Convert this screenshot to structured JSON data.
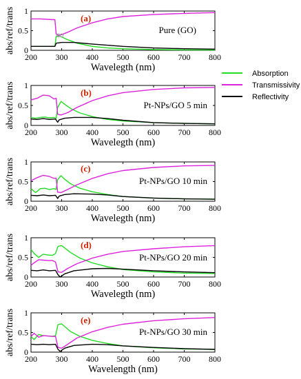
{
  "colors": {
    "absorption": "#22dd22",
    "transmissivity": "#dd22dd",
    "reflectivity": "#000000",
    "panel_tag": "#cc2200",
    "marker": "#999999"
  },
  "legend": {
    "absorption": "Absorption",
    "transmissivity": "Transmissivity",
    "reflectivity": "Reflectivity"
  },
  "chart_data": [
    {
      "type": "line",
      "tag": "(a)",
      "label": "Pure (GO)",
      "xlabel": "Wavelegth (nm)",
      "ylabel": "abs/ref/trans",
      "xlim": [
        200,
        800
      ],
      "ylim": [
        0,
        1
      ],
      "xticks": [
        "200",
        "300",
        "400",
        "500",
        "600",
        "700",
        "800"
      ],
      "yticks": [
        "0",
        "0.5",
        "1"
      ],
      "series": [
        {
          "name": "Absorption",
          "x": [
            200,
            270,
            278,
            282,
            290,
            300,
            320,
            350,
            400,
            450,
            500,
            600,
            700,
            800
          ],
          "y": [
            0.1,
            0.1,
            0.1,
            0.35,
            0.37,
            0.34,
            0.27,
            0.18,
            0.1,
            0.06,
            0.04,
            0.02,
            0.01,
            0.01
          ]
        },
        {
          "name": "Transmissivity",
          "x": [
            200,
            230,
            270,
            278,
            282,
            290,
            300,
            320,
            350,
            400,
            450,
            500,
            600,
            700,
            800
          ],
          "y": [
            0.8,
            0.8,
            0.78,
            0.78,
            0.42,
            0.38,
            0.4,
            0.46,
            0.57,
            0.7,
            0.8,
            0.86,
            0.91,
            0.94,
            0.96
          ]
        },
        {
          "name": "Reflectivity",
          "x": [
            200,
            270,
            278,
            282,
            300,
            340,
            400,
            500,
            600,
            700,
            800
          ],
          "y": [
            0.1,
            0.1,
            0.1,
            0.18,
            0.2,
            0.2,
            0.16,
            0.1,
            0.06,
            0.04,
            0.03
          ]
        }
      ]
    },
    {
      "type": "line",
      "tag": "(b)",
      "label": "Pt-NPs/GO 5 min",
      "xlabel": "Wavelegth (nm)",
      "ylabel": "abs/ref/trans",
      "xlim": [
        200,
        800
      ],
      "ylim": [
        0,
        1
      ],
      "xticks": [
        "200",
        "300",
        "400",
        "500",
        "600",
        "700",
        "800"
      ],
      "yticks": [
        "0",
        "0.5",
        "1"
      ],
      "series": [
        {
          "name": "Absorption",
          "x": [
            200,
            215,
            230,
            245,
            260,
            275,
            282,
            287,
            298,
            310,
            330,
            360,
            400,
            450,
            500,
            600,
            700,
            800
          ],
          "y": [
            0.2,
            0.18,
            0.2,
            0.21,
            0.19,
            0.2,
            0.18,
            0.45,
            0.6,
            0.53,
            0.42,
            0.31,
            0.22,
            0.15,
            0.11,
            0.07,
            0.05,
            0.04
          ]
        },
        {
          "name": "Transmissivity",
          "x": [
            200,
            220,
            240,
            260,
            275,
            282,
            287,
            298,
            320,
            350,
            400,
            450,
            500,
            600,
            700,
            800
          ],
          "y": [
            0.64,
            0.68,
            0.76,
            0.74,
            0.66,
            0.68,
            0.28,
            0.26,
            0.32,
            0.45,
            0.62,
            0.74,
            0.82,
            0.9,
            0.94,
            0.95
          ]
        },
        {
          "name": "Reflectivity",
          "x": [
            200,
            220,
            240,
            260,
            280,
            287,
            292,
            310,
            340,
            400,
            450,
            500,
            600,
            700,
            800
          ],
          "y": [
            0.16,
            0.15,
            0.17,
            0.15,
            0.16,
            0.08,
            0.14,
            0.18,
            0.2,
            0.2,
            0.17,
            0.13,
            0.07,
            0.05,
            0.04
          ]
        }
      ]
    },
    {
      "type": "line",
      "tag": "(c)",
      "label": "Pt-NPs/GO 10 min",
      "xlabel": "Wavelegth (nm)",
      "ylabel": "abs/ref/trans",
      "xlim": [
        200,
        800
      ],
      "ylim": [
        0,
        1
      ],
      "xticks": [
        "200",
        "300",
        "400",
        "500",
        "600",
        "700",
        "800"
      ],
      "yticks": [
        "0",
        "0.5",
        "1"
      ],
      "series": [
        {
          "name": "Absorption",
          "x": [
            200,
            215,
            230,
            245,
            260,
            275,
            282,
            287,
            298,
            310,
            330,
            360,
            400,
            450,
            500,
            600,
            700,
            800
          ],
          "y": [
            0.32,
            0.22,
            0.32,
            0.33,
            0.3,
            0.32,
            0.3,
            0.55,
            0.65,
            0.56,
            0.44,
            0.33,
            0.24,
            0.17,
            0.12,
            0.08,
            0.06,
            0.05
          ]
        },
        {
          "name": "Transmissivity",
          "x": [
            200,
            220,
            240,
            260,
            275,
            282,
            287,
            298,
            320,
            350,
            400,
            450,
            500,
            600,
            700,
            800
          ],
          "y": [
            0.52,
            0.6,
            0.66,
            0.63,
            0.58,
            0.59,
            0.23,
            0.22,
            0.3,
            0.42,
            0.58,
            0.7,
            0.78,
            0.86,
            0.9,
            0.91
          ]
        },
        {
          "name": "Reflectivity",
          "x": [
            200,
            220,
            240,
            260,
            280,
            287,
            292,
            310,
            340,
            400,
            450,
            500,
            600,
            700,
            800
          ],
          "y": [
            0.15,
            0.14,
            0.16,
            0.14,
            0.15,
            0.07,
            0.13,
            0.17,
            0.19,
            0.18,
            0.16,
            0.12,
            0.08,
            0.06,
            0.05
          ]
        }
      ]
    },
    {
      "type": "line",
      "tag": "(d)",
      "label": "Pt-NPs/GO 20 min",
      "xlabel": "Wavelegth (nm)",
      "ylabel": "abs/ref/trans",
      "xlim": [
        200,
        800
      ],
      "ylim": [
        0,
        1
      ],
      "xticks": [
        "200",
        "300",
        "400",
        "500",
        "600",
        "700",
        "800"
      ],
      "yticks": [
        "0",
        "0.5",
        "1"
      ],
      "series": [
        {
          "name": "Absorption",
          "x": [
            200,
            210,
            225,
            240,
            255,
            270,
            280,
            288,
            300,
            310,
            330,
            360,
            400,
            450,
            500,
            600,
            700,
            800
          ],
          "y": [
            0.7,
            0.6,
            0.5,
            0.58,
            0.56,
            0.55,
            0.6,
            0.78,
            0.8,
            0.74,
            0.62,
            0.48,
            0.36,
            0.26,
            0.19,
            0.13,
            0.1,
            0.09
          ]
        },
        {
          "name": "Transmissivity",
          "x": [
            200,
            210,
            225,
            240,
            255,
            270,
            280,
            288,
            300,
            320,
            350,
            400,
            450,
            500,
            600,
            700,
            800
          ],
          "y": [
            0.3,
            0.36,
            0.44,
            0.43,
            0.42,
            0.42,
            0.38,
            0.13,
            0.12,
            0.22,
            0.34,
            0.48,
            0.58,
            0.65,
            0.72,
            0.77,
            0.8
          ]
        },
        {
          "name": "Reflectivity",
          "x": [
            200,
            220,
            240,
            260,
            280,
            288,
            295,
            310,
            340,
            400,
            450,
            500,
            600,
            700,
            800
          ],
          "y": [
            0.17,
            0.16,
            0.18,
            0.16,
            0.17,
            0.06,
            0.0,
            0.08,
            0.16,
            0.21,
            0.22,
            0.2,
            0.16,
            0.13,
            0.11
          ]
        }
      ]
    },
    {
      "type": "line",
      "tag": "(e)",
      "label": "Pt-NPs/GO 30 min",
      "xlabel": "Wavelength (nm)",
      "ylabel": "abs/ref/trans",
      "xlim": [
        200,
        800
      ],
      "ylim": [
        0,
        1
      ],
      "xticks": [
        "200",
        "300",
        "400",
        "500",
        "600",
        "700",
        "800"
      ],
      "yticks": [
        "0",
        "0.5",
        "1"
      ],
      "series": [
        {
          "name": "Absorption",
          "x": [
            200,
            210,
            225,
            240,
            255,
            270,
            280,
            288,
            300,
            310,
            330,
            360,
            400,
            450,
            500,
            600,
            700,
            800
          ],
          "y": [
            0.4,
            0.32,
            0.45,
            0.42,
            0.41,
            0.4,
            0.42,
            0.7,
            0.72,
            0.65,
            0.52,
            0.4,
            0.3,
            0.22,
            0.16,
            0.11,
            0.08,
            0.07
          ]
        },
        {
          "name": "Transmissivity",
          "x": [
            200,
            210,
            225,
            240,
            255,
            270,
            280,
            288,
            300,
            320,
            350,
            400,
            450,
            500,
            600,
            700,
            800
          ],
          "y": [
            0.4,
            0.48,
            0.38,
            0.42,
            0.41,
            0.4,
            0.4,
            0.12,
            0.1,
            0.2,
            0.36,
            0.52,
            0.63,
            0.71,
            0.8,
            0.85,
            0.88
          ]
        },
        {
          "name": "Reflectivity",
          "x": [
            200,
            220,
            240,
            260,
            280,
            288,
            295,
            310,
            340,
            400,
            450,
            500,
            600,
            700,
            800
          ],
          "y": [
            0.2,
            0.19,
            0.2,
            0.19,
            0.2,
            0.07,
            0.02,
            0.1,
            0.17,
            0.2,
            0.19,
            0.16,
            0.12,
            0.09,
            0.07
          ]
        }
      ]
    }
  ]
}
